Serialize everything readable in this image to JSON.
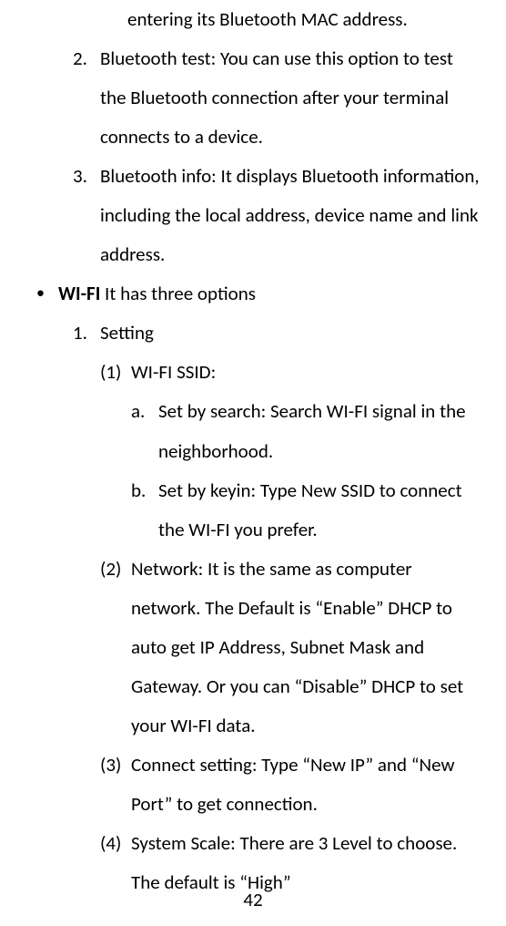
{
  "fragment_line": "entering its Bluetooth MAC address.",
  "bluetooth_items": [
    {
      "marker": "2.",
      "text": "Bluetooth test: You can use this option to test the Bluetooth connection after your terminal connects to a device."
    },
    {
      "marker": "3.",
      "text": "Bluetooth info: It displays Bluetooth information, including the local address, device name and link address."
    }
  ],
  "wifi_bullet": "•",
  "wifi_label": "WI-FI",
  "wifi_rest": " It has three options",
  "wifi_setting": {
    "marker": "1.",
    "text": "Setting"
  },
  "wifi_ssid_head": {
    "marker": "(1)",
    "text": "WI-FI SSID:"
  },
  "wifi_ssid_children": [
    {
      "marker": "a.",
      "text": "Set by search: Search WI-FI signal in the neighborhood."
    },
    {
      "marker": "b.",
      "text": "Set by keyin: Type New SSID to connect the WI-FI you prefer."
    }
  ],
  "wifi_paren_items": [
    {
      "marker": "(2)",
      "text": "Network: It is the same as computer network. The Default is “Enable” DHCP to auto get IP Address, Subnet Mask and Gateway. Or you can “Disable” DHCP to set your WI-FI data."
    },
    {
      "marker": "(3)",
      "text": "Connect setting: Type “New IP” and “New Port” to get connection."
    },
    {
      "marker": "(4)",
      "text": "System Scale: There are 3 Level to choose. The default is “High”"
    }
  ],
  "page_number": "42"
}
